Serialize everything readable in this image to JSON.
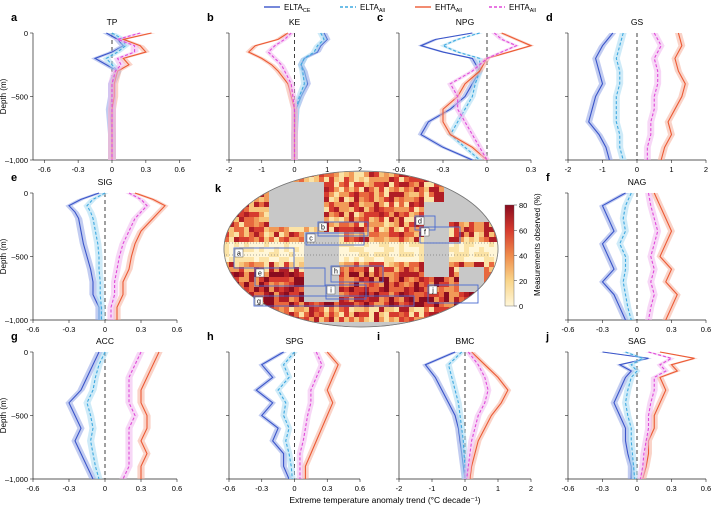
{
  "legend": [
    {
      "label": "ELTA",
      "sub": "CE",
      "color": "#3a55c9",
      "dash": "solid"
    },
    {
      "label": "ELTA",
      "sub": "All",
      "color": "#3fa9e0",
      "dash": "dashed"
    },
    {
      "label": "EHTA",
      "sub": "All",
      "color": "#ec5a34",
      "dash": "solid"
    },
    {
      "label": "EHTA",
      "sub": "All",
      "color": "#e04ad9",
      "dash": "dashed"
    }
  ],
  "xlabel_common": "Extreme temperature anomaly trend (°C decade⁻¹)",
  "ylabel": "Depth (m)",
  "map_panel": {
    "letter": "k",
    "colorbar_label": "Measurements observed (%)",
    "colorbar_ticks": [
      "80",
      "60",
      "40",
      "20",
      "0"
    ],
    "region_labels": [
      "a",
      "b",
      "c",
      "d",
      "e",
      "f",
      "g",
      "h",
      "i",
      "j"
    ]
  },
  "chart_data": [
    {
      "letter": "a",
      "title": "TP",
      "type": "line",
      "xlim": [
        -0.7,
        0.7
      ],
      "ylim": [
        0,
        1000
      ],
      "yticks": [
        "0",
        "-500",
        "-1,000"
      ],
      "xticks": [
        "-0.6",
        "-0.3",
        "0",
        "0.3",
        "0.6"
      ],
      "tickvals": [
        -0.6,
        -0.3,
        0,
        0.3,
        0.6
      ],
      "depth": [
        0,
        50,
        100,
        150,
        200,
        250,
        300,
        400,
        500,
        600,
        800,
        1000
      ],
      "series": [
        {
          "values": [
            -0.05,
            0.05,
            0.1,
            0.0,
            -0.15,
            -0.05,
            0.05,
            0.0,
            0.0,
            -0.02,
            0.0,
            0.0
          ]
        },
        {
          "values": [
            0.0,
            0.1,
            0.12,
            0.05,
            -0.05,
            0.0,
            0.05,
            0.0,
            0.0,
            0.0,
            0.0,
            0.0
          ]
        },
        {
          "values": [
            0.35,
            0.1,
            0.25,
            0.3,
            0.1,
            0.15,
            0.05,
            0.02,
            0.02,
            0.0,
            0.0,
            0.0
          ]
        },
        {
          "values": [
            0.25,
            0.05,
            0.2,
            0.2,
            0.05,
            0.08,
            0.03,
            0.0,
            0.0,
            0.0,
            0.0,
            0.0
          ]
        }
      ]
    },
    {
      "letter": "b",
      "title": "KE",
      "type": "line",
      "xlim": [
        -2,
        2
      ],
      "ylim": [
        0,
        1000
      ],
      "xticks": [
        "-2",
        "-1",
        "0",
        "1",
        "2"
      ],
      "tickvals": [
        -2,
        -1,
        0,
        1,
        2
      ],
      "depth": [
        0,
        50,
        100,
        150,
        200,
        250,
        300,
        400,
        500,
        600,
        800,
        1000
      ],
      "series": [
        {
          "values": [
            0.9,
            1.0,
            0.8,
            0.7,
            0.3,
            0.2,
            0.3,
            0.4,
            0.2,
            0.05,
            0.0,
            0.0
          ]
        },
        {
          "values": [
            0.8,
            0.9,
            0.7,
            0.6,
            0.3,
            0.2,
            0.25,
            0.3,
            0.15,
            0.05,
            0.0,
            0.0
          ]
        },
        {
          "values": [
            -0.2,
            -0.5,
            -1.2,
            -1.4,
            -1.0,
            -0.7,
            -0.5,
            -0.2,
            -0.1,
            0.0,
            0.0,
            0.0
          ]
        },
        {
          "values": [
            -0.1,
            -0.3,
            -0.6,
            -0.8,
            -0.6,
            -0.4,
            -0.3,
            -0.1,
            -0.05,
            0.0,
            0.0,
            0.0
          ]
        }
      ]
    },
    {
      "letter": "c",
      "title": "NPG",
      "type": "line",
      "xlim": [
        -0.6,
        0.3
      ],
      "ylim": [
        0,
        1000
      ],
      "xticks": [
        "-0.6",
        "-0.3",
        "0",
        "0.3"
      ],
      "tickvals": [
        -0.6,
        -0.3,
        0,
        0.3
      ],
      "depth": [
        0,
        50,
        100,
        150,
        200,
        300,
        400,
        500,
        600,
        700,
        800,
        900,
        1000
      ],
      "series": [
        {
          "values": [
            -0.1,
            -0.35,
            -0.45,
            -0.3,
            -0.1,
            -0.05,
            -0.1,
            -0.15,
            -0.25,
            -0.4,
            -0.45,
            -0.3,
            -0.1
          ]
        },
        {
          "values": [
            -0.05,
            -0.2,
            -0.3,
            -0.2,
            -0.05,
            -0.05,
            -0.08,
            -0.1,
            -0.15,
            -0.2,
            -0.25,
            -0.15,
            -0.05
          ]
        },
        {
          "values": [
            0.1,
            0.2,
            0.3,
            0.15,
            0.0,
            -0.05,
            -0.15,
            -0.2,
            -0.3,
            -0.3,
            -0.25,
            -0.1,
            0.0
          ]
        },
        {
          "values": [
            0.05,
            0.1,
            0.2,
            0.1,
            0.0,
            -0.1,
            -0.25,
            -0.2,
            -0.2,
            -0.15,
            -0.1,
            -0.05,
            0.0
          ]
        }
      ]
    },
    {
      "letter": "d",
      "title": "GS",
      "type": "line",
      "xlim": [
        -2,
        2
      ],
      "ylim": [
        0,
        1000
      ],
      "xticks": [
        "-2",
        "-1",
        "0",
        "1",
        "2"
      ],
      "tickvals": [
        -2,
        -1,
        0,
        1,
        2
      ],
      "depth": [
        0,
        100,
        200,
        300,
        400,
        500,
        600,
        700,
        800,
        900,
        1000
      ],
      "series": [
        {
          "values": [
            -0.7,
            -1.0,
            -1.2,
            -1.1,
            -1.0,
            -1.2,
            -1.3,
            -1.4,
            -1.1,
            -0.9,
            -0.8
          ]
        },
        {
          "values": [
            -0.4,
            -0.5,
            -0.6,
            -0.5,
            -0.5,
            -0.6,
            -0.6,
            -0.6,
            -0.5,
            -0.5,
            -0.4
          ]
        },
        {
          "values": [
            1.2,
            1.3,
            1.1,
            1.2,
            1.4,
            1.3,
            1.1,
            0.9,
            1.0,
            0.8,
            0.7
          ]
        },
        {
          "values": [
            0.5,
            0.7,
            0.5,
            0.6,
            0.6,
            0.5,
            0.5,
            0.4,
            0.4,
            0.3,
            0.3
          ]
        }
      ]
    },
    {
      "letter": "e",
      "title": "SIG",
      "type": "line",
      "xlim": [
        -0.6,
        0.6
      ],
      "ylim": [
        0,
        1000
      ],
      "xticks": [
        "-0.6",
        "-0.3",
        "0",
        "0.3",
        "0.6"
      ],
      "tickvals": [
        -0.6,
        -0.3,
        0,
        0.3,
        0.6
      ],
      "depth": [
        0,
        50,
        100,
        150,
        200,
        300,
        400,
        500,
        600,
        700,
        800,
        900,
        1000
      ],
      "series": [
        {
          "values": [
            -0.05,
            -0.2,
            -0.3,
            -0.25,
            -0.22,
            -0.2,
            -0.18,
            -0.15,
            -0.12,
            -0.1,
            -0.1,
            -0.05,
            -0.05
          ]
        },
        {
          "values": [
            0.0,
            -0.1,
            -0.15,
            -0.12,
            -0.1,
            -0.08,
            -0.06,
            -0.05,
            -0.05,
            -0.04,
            -0.04,
            -0.03,
            -0.03
          ]
        },
        {
          "values": [
            0.25,
            0.4,
            0.5,
            0.45,
            0.4,
            0.3,
            0.25,
            0.22,
            0.2,
            0.15,
            0.15,
            0.1,
            0.1
          ]
        },
        {
          "values": [
            0.2,
            0.3,
            0.35,
            0.3,
            0.25,
            0.2,
            0.15,
            0.12,
            0.1,
            0.08,
            0.08,
            0.05,
            0.05
          ]
        }
      ]
    },
    {
      "letter": "f",
      "title": "NAG",
      "type": "line",
      "xlim": [
        -0.6,
        0.6
      ],
      "ylim": [
        0,
        1000
      ],
      "xticks": [
        "-0.6",
        "-0.3",
        "0",
        "0.3",
        "0.6"
      ],
      "tickvals": [
        -0.6,
        -0.3,
        0,
        0.3,
        0.6
      ],
      "depth": [
        0,
        100,
        200,
        300,
        400,
        500,
        600,
        700,
        800,
        900,
        1000
      ],
      "series": [
        {
          "values": [
            -0.1,
            -0.3,
            -0.25,
            -0.2,
            -0.3,
            -0.25,
            -0.2,
            -0.3,
            -0.2,
            -0.15,
            -0.1
          ]
        },
        {
          "values": [
            -0.05,
            -0.1,
            -0.12,
            -0.1,
            -0.15,
            -0.1,
            -0.1,
            -0.12,
            -0.1,
            -0.08,
            -0.05
          ]
        },
        {
          "values": [
            0.15,
            0.2,
            0.25,
            0.3,
            0.25,
            0.2,
            0.3,
            0.25,
            0.35,
            0.3,
            0.25
          ]
        },
        {
          "values": [
            0.1,
            0.12,
            0.15,
            0.18,
            0.15,
            0.12,
            0.15,
            0.12,
            0.15,
            0.12,
            0.1
          ]
        }
      ]
    },
    {
      "letter": "g",
      "title": "ACC",
      "type": "line",
      "xlim": [
        -0.6,
        0.6
      ],
      "ylim": [
        0,
        1000
      ],
      "xticks": [
        "-0.6",
        "-0.3",
        "0",
        "0.3",
        "0.6"
      ],
      "tickvals": [
        -0.6,
        -0.3,
        0,
        0.3,
        0.6
      ],
      "depth": [
        0,
        100,
        200,
        300,
        400,
        500,
        600,
        700,
        800,
        900,
        1000
      ],
      "series": [
        {
          "values": [
            -0.05,
            -0.1,
            -0.15,
            -0.2,
            -0.3,
            -0.25,
            -0.2,
            -0.25,
            -0.2,
            -0.15,
            -0.1
          ]
        },
        {
          "values": [
            0.0,
            -0.05,
            -0.08,
            -0.1,
            -0.15,
            -0.12,
            -0.1,
            -0.12,
            -0.1,
            -0.08,
            -0.05
          ]
        },
        {
          "values": [
            0.45,
            0.4,
            0.35,
            0.3,
            0.3,
            0.35,
            0.35,
            0.3,
            0.35,
            0.3,
            0.3
          ]
        },
        {
          "values": [
            0.3,
            0.25,
            0.2,
            0.2,
            0.2,
            0.25,
            0.2,
            0.2,
            0.2,
            0.2,
            0.15
          ]
        }
      ]
    },
    {
      "letter": "h",
      "title": "SPG",
      "type": "line",
      "xlim": [
        -0.6,
        0.6
      ],
      "ylim": [
        0,
        1000
      ],
      "xticks": [
        "-0.6",
        "-0.3",
        "0",
        "0.3",
        "0.6"
      ],
      "tickvals": [
        -0.6,
        -0.3,
        0,
        0.3,
        0.6
      ],
      "depth": [
        0,
        100,
        200,
        300,
        400,
        500,
        600,
        700,
        800,
        900,
        1000
      ],
      "series": [
        {
          "values": [
            -0.1,
            -0.3,
            -0.2,
            -0.35,
            -0.2,
            -0.3,
            -0.15,
            -0.2,
            -0.1,
            -0.1,
            -0.05
          ]
        },
        {
          "values": [
            0.0,
            -0.1,
            -0.05,
            -0.15,
            -0.08,
            -0.1,
            -0.05,
            -0.08,
            -0.05,
            -0.03,
            -0.02
          ]
        },
        {
          "values": [
            0.3,
            0.4,
            0.35,
            0.3,
            0.35,
            0.3,
            0.25,
            0.2,
            0.15,
            0.1,
            0.1
          ]
        },
        {
          "values": [
            0.2,
            0.25,
            0.2,
            0.15,
            0.15,
            0.12,
            0.1,
            0.08,
            0.05,
            0.05,
            0.05
          ]
        }
      ]
    },
    {
      "letter": "i",
      "title": "BMC",
      "type": "line",
      "xlim": [
        -2,
        2
      ],
      "ylim": [
        0,
        1000
      ],
      "xticks": [
        "-2",
        "-1",
        "0",
        "1",
        "2"
      ],
      "tickvals": [
        -2,
        -1,
        0,
        1,
        2
      ],
      "depth": [
        0,
        100,
        200,
        300,
        400,
        500,
        600,
        700,
        800,
        900,
        1000
      ],
      "series": [
        {
          "values": [
            -0.3,
            -1.2,
            -0.9,
            -0.7,
            -0.5,
            -0.3,
            -0.2,
            -0.15,
            -0.1,
            -0.05,
            0.0
          ]
        },
        {
          "values": [
            -0.1,
            -0.5,
            -0.4,
            -0.3,
            -0.2,
            -0.15,
            -0.1,
            -0.05,
            -0.03,
            0.0,
            0.0
          ]
        },
        {
          "values": [
            0.2,
            0.6,
            1.0,
            1.3,
            1.1,
            0.8,
            0.6,
            0.4,
            0.3,
            0.2,
            0.15
          ]
        },
        {
          "values": [
            0.1,
            0.4,
            0.6,
            0.7,
            0.6,
            0.4,
            0.3,
            0.2,
            0.15,
            0.1,
            0.05
          ]
        }
      ]
    },
    {
      "letter": "j",
      "title": "SAG",
      "type": "line",
      "xlim": [
        -0.6,
        0.6
      ],
      "ylim": [
        0,
        1000
      ],
      "xticks": [
        "-0.6",
        "-0.3",
        "0",
        "0.3",
        "0.6"
      ],
      "tickvals": [
        -0.6,
        -0.3,
        0,
        0.3,
        0.6
      ],
      "depth": [
        0,
        50,
        100,
        150,
        200,
        300,
        400,
        500,
        600,
        700,
        800,
        900,
        1000
      ],
      "series": [
        {
          "values": [
            -0.3,
            0.1,
            -0.15,
            -0.05,
            -0.1,
            -0.15,
            -0.2,
            -0.15,
            -0.1,
            -0.1,
            -0.08,
            -0.05,
            -0.05
          ]
        },
        {
          "values": [
            -0.1,
            0.05,
            -0.05,
            0.0,
            -0.05,
            -0.08,
            -0.1,
            -0.08,
            -0.05,
            -0.05,
            -0.04,
            -0.03,
            -0.02
          ]
        },
        {
          "values": [
            0.2,
            0.5,
            0.3,
            0.35,
            0.2,
            0.25,
            0.2,
            0.15,
            0.15,
            0.1,
            0.1,
            0.08,
            0.05
          ]
        },
        {
          "values": [
            0.1,
            0.3,
            0.2,
            0.25,
            0.15,
            0.15,
            0.12,
            0.1,
            0.1,
            0.08,
            0.06,
            0.05,
            0.03
          ]
        }
      ]
    }
  ]
}
